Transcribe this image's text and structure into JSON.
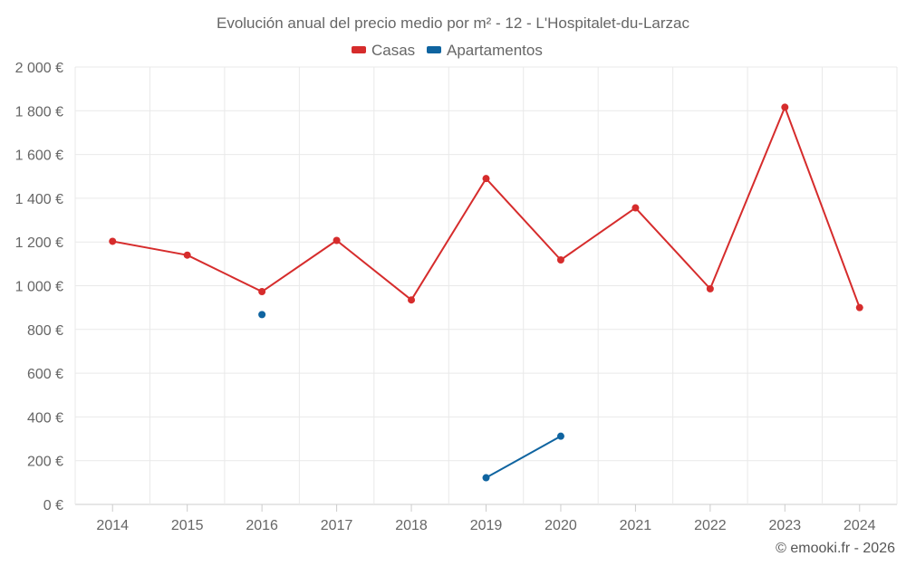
{
  "chart_data": {
    "type": "line",
    "title": "Evolución anual del precio medio por m² - 12 - L'Hospitalet-du-Larzac",
    "categories": [
      "2014",
      "2015",
      "2016",
      "2017",
      "2018",
      "2019",
      "2020",
      "2021",
      "2022",
      "2023",
      "2024"
    ],
    "series": [
      {
        "name": "Casas",
        "color": "#d62c2c",
        "values": [
          1203,
          1140,
          973,
          1207,
          935,
          1490,
          1118,
          1356,
          986,
          1816,
          900
        ]
      },
      {
        "name": "Apartamentos",
        "color": "#0f64a0",
        "values": [
          null,
          null,
          868,
          null,
          null,
          122,
          312,
          null,
          null,
          null,
          null
        ]
      }
    ],
    "yticks": [
      0,
      200,
      400,
      600,
      800,
      1000,
      1200,
      1400,
      1600,
      1800,
      2000
    ],
    "ytick_labels": [
      "0 €",
      "200 €",
      "400 €",
      "600 €",
      "800 €",
      "1 000 €",
      "1 200 €",
      "1 400 €",
      "1 600 €",
      "1 800 €",
      "2 000 €"
    ],
    "ylim": [
      0,
      2000
    ],
    "xlabel": "",
    "ylabel": "",
    "legend_position": "top-center",
    "grid": true,
    "credit": "© emooki.fr - 2026"
  }
}
